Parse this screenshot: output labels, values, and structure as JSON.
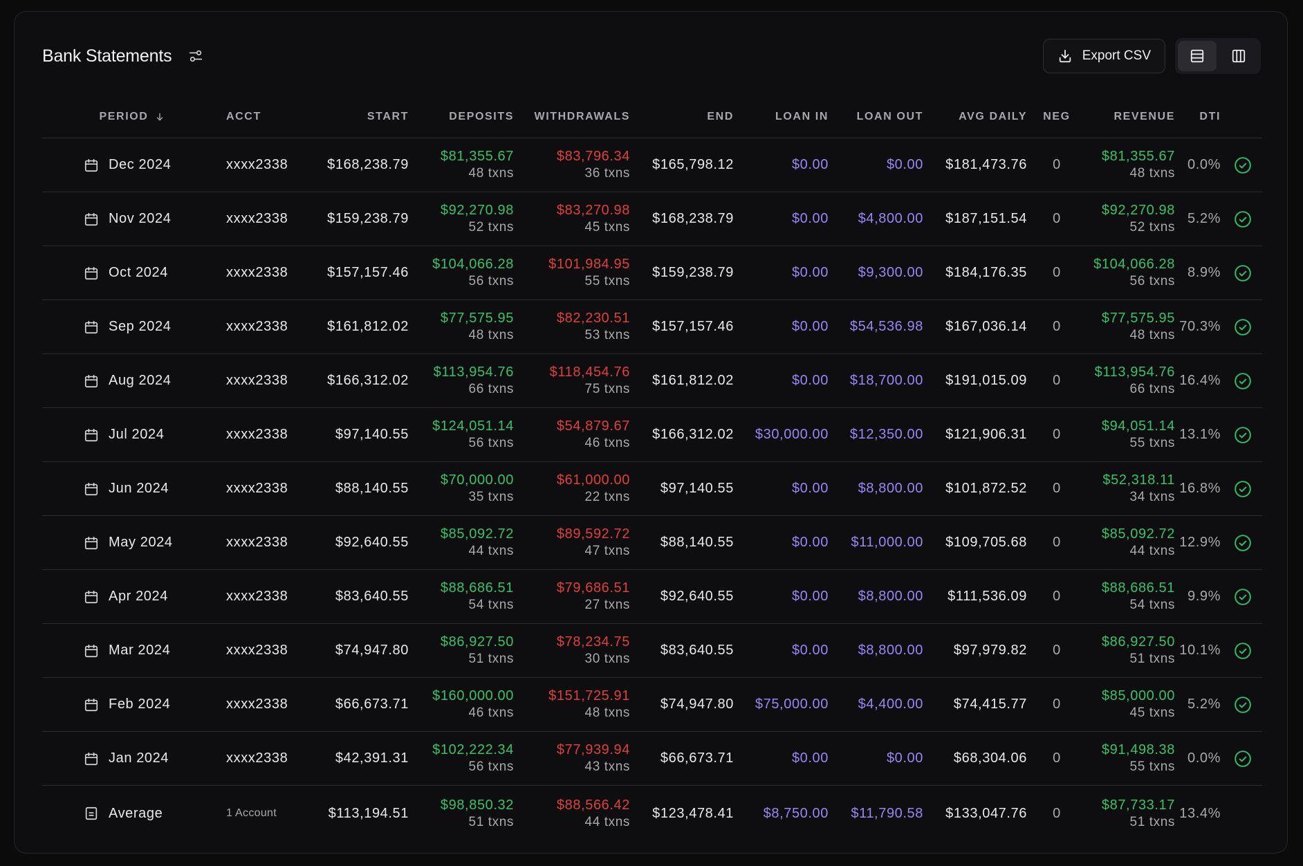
{
  "header": {
    "title": "Bank Statements",
    "export_label": "Export CSV"
  },
  "columns": {
    "period": "PERIOD",
    "acct": "ACCT",
    "start": "START",
    "deposits": "DEPOSITS",
    "withdrawals": "WITHDRAWALS",
    "end": "END",
    "loan_in": "LOAN IN",
    "loan_out": "LOAN OUT",
    "avg_daily": "AVG DAILY",
    "neg": "NEG",
    "revenue": "REVENUE",
    "dti": "DTI"
  },
  "rows": [
    {
      "period": "Dec 2024",
      "acct": "xxxx2338",
      "start": "$168,238.79",
      "deposits": "$81,355.67",
      "deposits_txns": "48 txns",
      "withdrawals": "$83,796.34",
      "withdrawals_txns": "36 txns",
      "end": "$165,798.12",
      "loan_in": "$0.00",
      "loan_out": "$0.00",
      "avg_daily": "$181,473.76",
      "neg": "0",
      "revenue": "$81,355.67",
      "revenue_txns": "48 txns",
      "dti": "0.0%"
    },
    {
      "period": "Nov 2024",
      "acct": "xxxx2338",
      "start": "$159,238.79",
      "deposits": "$92,270.98",
      "deposits_txns": "52 txns",
      "withdrawals": "$83,270.98",
      "withdrawals_txns": "45 txns",
      "end": "$168,238.79",
      "loan_in": "$0.00",
      "loan_out": "$4,800.00",
      "avg_daily": "$187,151.54",
      "neg": "0",
      "revenue": "$92,270.98",
      "revenue_txns": "52 txns",
      "dti": "5.2%"
    },
    {
      "period": "Oct 2024",
      "acct": "xxxx2338",
      "start": "$157,157.46",
      "deposits": "$104,066.28",
      "deposits_txns": "56 txns",
      "withdrawals": "$101,984.95",
      "withdrawals_txns": "55 txns",
      "end": "$159,238.79",
      "loan_in": "$0.00",
      "loan_out": "$9,300.00",
      "avg_daily": "$184,176.35",
      "neg": "0",
      "revenue": "$104,066.28",
      "revenue_txns": "56 txns",
      "dti": "8.9%"
    },
    {
      "period": "Sep 2024",
      "acct": "xxxx2338",
      "start": "$161,812.02",
      "deposits": "$77,575.95",
      "deposits_txns": "48 txns",
      "withdrawals": "$82,230.51",
      "withdrawals_txns": "53 txns",
      "end": "$157,157.46",
      "loan_in": "$0.00",
      "loan_out": "$54,536.98",
      "avg_daily": "$167,036.14",
      "neg": "0",
      "revenue": "$77,575.95",
      "revenue_txns": "48 txns",
      "dti": "70.3%"
    },
    {
      "period": "Aug 2024",
      "acct": "xxxx2338",
      "start": "$166,312.02",
      "deposits": "$113,954.76",
      "deposits_txns": "66 txns",
      "withdrawals": "$118,454.76",
      "withdrawals_txns": "75 txns",
      "end": "$161,812.02",
      "loan_in": "$0.00",
      "loan_out": "$18,700.00",
      "avg_daily": "$191,015.09",
      "neg": "0",
      "revenue": "$113,954.76",
      "revenue_txns": "66 txns",
      "dti": "16.4%"
    },
    {
      "period": "Jul 2024",
      "acct": "xxxx2338",
      "start": "$97,140.55",
      "deposits": "$124,051.14",
      "deposits_txns": "56 txns",
      "withdrawals": "$54,879.67",
      "withdrawals_txns": "46 txns",
      "end": "$166,312.02",
      "loan_in": "$30,000.00",
      "loan_out": "$12,350.00",
      "avg_daily": "$121,906.31",
      "neg": "0",
      "revenue": "$94,051.14",
      "revenue_txns": "55 txns",
      "dti": "13.1%"
    },
    {
      "period": "Jun 2024",
      "acct": "xxxx2338",
      "start": "$88,140.55",
      "deposits": "$70,000.00",
      "deposits_txns": "35 txns",
      "withdrawals": "$61,000.00",
      "withdrawals_txns": "22 txns",
      "end": "$97,140.55",
      "loan_in": "$0.00",
      "loan_out": "$8,800.00",
      "avg_daily": "$101,872.52",
      "neg": "0",
      "revenue": "$52,318.11",
      "revenue_txns": "34 txns",
      "dti": "16.8%"
    },
    {
      "period": "May 2024",
      "acct": "xxxx2338",
      "start": "$92,640.55",
      "deposits": "$85,092.72",
      "deposits_txns": "44 txns",
      "withdrawals": "$89,592.72",
      "withdrawals_txns": "47 txns",
      "end": "$88,140.55",
      "loan_in": "$0.00",
      "loan_out": "$11,000.00",
      "avg_daily": "$109,705.68",
      "neg": "0",
      "revenue": "$85,092.72",
      "revenue_txns": "44 txns",
      "dti": "12.9%"
    },
    {
      "period": "Apr 2024",
      "acct": "xxxx2338",
      "start": "$83,640.55",
      "deposits": "$88,686.51",
      "deposits_txns": "54 txns",
      "withdrawals": "$79,686.51",
      "withdrawals_txns": "27 txns",
      "end": "$92,640.55",
      "loan_in": "$0.00",
      "loan_out": "$8,800.00",
      "avg_daily": "$111,536.09",
      "neg": "0",
      "revenue": "$88,686.51",
      "revenue_txns": "54 txns",
      "dti": "9.9%"
    },
    {
      "period": "Mar 2024",
      "acct": "xxxx2338",
      "start": "$74,947.80",
      "deposits": "$86,927.50",
      "deposits_txns": "51 txns",
      "withdrawals": "$78,234.75",
      "withdrawals_txns": "30 txns",
      "end": "$83,640.55",
      "loan_in": "$0.00",
      "loan_out": "$8,800.00",
      "avg_daily": "$97,979.82",
      "neg": "0",
      "revenue": "$86,927.50",
      "revenue_txns": "51 txns",
      "dti": "10.1%"
    },
    {
      "period": "Feb 2024",
      "acct": "xxxx2338",
      "start": "$66,673.71",
      "deposits": "$160,000.00",
      "deposits_txns": "46 txns",
      "withdrawals": "$151,725.91",
      "withdrawals_txns": "48 txns",
      "end": "$74,947.80",
      "loan_in": "$75,000.00",
      "loan_out": "$4,400.00",
      "avg_daily": "$74,415.77",
      "neg": "0",
      "revenue": "$85,000.00",
      "revenue_txns": "45 txns",
      "dti": "5.2%"
    },
    {
      "period": "Jan 2024",
      "acct": "xxxx2338",
      "start": "$42,391.31",
      "deposits": "$102,222.34",
      "deposits_txns": "56 txns",
      "withdrawals": "$77,939.94",
      "withdrawals_txns": "43 txns",
      "end": "$66,673.71",
      "loan_in": "$0.00",
      "loan_out": "$0.00",
      "avg_daily": "$68,304.06",
      "neg": "0",
      "revenue": "$91,498.38",
      "revenue_txns": "55 txns",
      "dti": "0.0%"
    }
  ],
  "average": {
    "period": "Average",
    "acct": "1 Account",
    "start": "$113,194.51",
    "deposits": "$98,850.32",
    "deposits_txns": "51 txns",
    "withdrawals": "$88,566.42",
    "withdrawals_txns": "44 txns",
    "end": "$123,478.41",
    "loan_in": "$8,750.00",
    "loan_out": "$11,790.58",
    "avg_daily": "$133,047.76",
    "neg": "0",
    "revenue": "$87,733.17",
    "revenue_txns": "51 txns",
    "dti": "13.4%"
  },
  "colors": {
    "positive": "#39c16a",
    "negative": "#e0403a",
    "loan": "#9a86f4",
    "status_ok": "#2fbf6b"
  },
  "icons": {
    "filter": "sliders-icon",
    "export": "download-icon",
    "view_rows": "rows-view-icon",
    "view_columns": "columns-view-icon",
    "period": "calendar-icon",
    "average": "calculator-icon",
    "status": "check-circle-icon",
    "sort": "arrow-down-icon"
  }
}
